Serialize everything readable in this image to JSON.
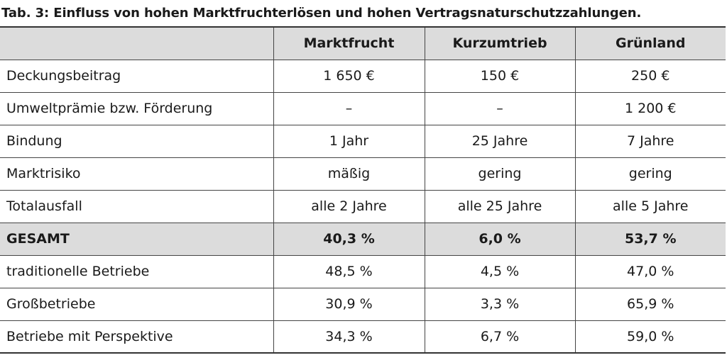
{
  "caption": "Tab. 3: Einfluss von hohen Marktfruchterlösen und hohen Vertragsnaturschutzzahlungen.",
  "table": {
    "headers": [
      "",
      "Marktfrucht",
      "Kurzumtrieb",
      "Grünland"
    ],
    "rows": [
      [
        "Deckungsbeitrag",
        "1 650 €",
        "150 €",
        "250 €"
      ],
      [
        "Umweltprämie bzw. Förderung",
        "–",
        "–",
        "1 200 €"
      ],
      [
        "Bindung",
        "1 Jahr",
        "25 Jahre",
        "7 Jahre"
      ],
      [
        "Marktrisiko",
        "mäßig",
        "gering",
        "gering"
      ],
      [
        "Totalausfall",
        "alle 2 Jahre",
        "alle 25 Jahre",
        "alle 5 Jahre"
      ],
      [
        "GESAMT",
        "40,3 %",
        "6,0 %",
        "53,7 %"
      ],
      [
        "traditionelle Betriebe",
        "48,5 %",
        "4,5 %",
        "47,0 %"
      ],
      [
        "Großbetriebe",
        "30,9 %",
        "3,3 %",
        "65,9 %"
      ],
      [
        "Betriebe mit Perspektive",
        "34,3 %",
        "6,7 %",
        "59,0 %"
      ]
    ],
    "highlight_color": "#dcdcdc"
  }
}
